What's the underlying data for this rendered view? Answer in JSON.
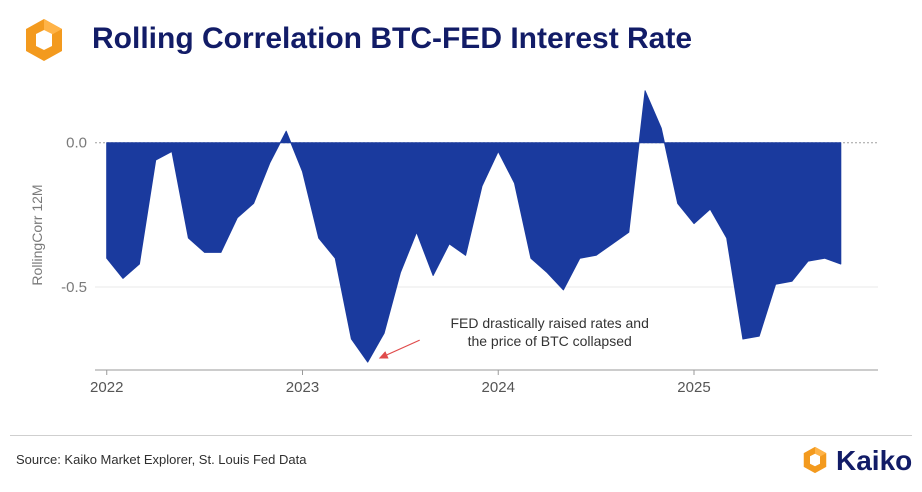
{
  "header": {
    "title": "Rolling Correlation BTC-FED Interest Rate"
  },
  "icons": {
    "logo": "kaiko-logo-icon",
    "brand": "kaiko-brand-icon",
    "arrow": "annotation-arrow-icon"
  },
  "colors": {
    "title": "#121c67",
    "fill": "#1a3a9e",
    "brand_orange": "#f39a1e",
    "brand_orange_light": "#ffb347",
    "arrow": "#e04b4b",
    "zero_line": "#a0a0a0",
    "grid": "#e8e8e8"
  },
  "chart_data": {
    "type": "area",
    "title": "Rolling Correlation BTC-FED Interest Rate",
    "xlabel": "",
    "ylabel": "RollingCorr 12M",
    "x_range": [
      2021.94,
      2025.94
    ],
    "ylim": [
      -0.77,
      0.2
    ],
    "yticks": [
      0.0,
      -0.5
    ],
    "ytick_labels": [
      "0.0",
      "-0.5"
    ],
    "xticks": [
      2022,
      2023,
      2024,
      2025
    ],
    "xtick_labels": [
      "2022",
      "2023",
      "2024",
      "2025"
    ],
    "grid": "horizontal",
    "zero_line": "dashed",
    "x": [
      2022.0,
      2022.083,
      2022.167,
      2022.25,
      2022.333,
      2022.417,
      2022.5,
      2022.583,
      2022.667,
      2022.75,
      2022.833,
      2022.917,
      2023.0,
      2023.083,
      2023.167,
      2023.25,
      2023.333,
      2023.417,
      2023.5,
      2023.583,
      2023.667,
      2023.75,
      2023.833,
      2023.917,
      2024.0,
      2024.083,
      2024.167,
      2024.25,
      2024.333,
      2024.417,
      2024.5,
      2024.583,
      2024.667,
      2024.75,
      2024.833,
      2024.917,
      2025.0,
      2025.083,
      2025.167,
      2025.25,
      2025.333,
      2025.417,
      2025.5,
      2025.583,
      2025.667,
      2025.75
    ],
    "values": [
      -0.4,
      -0.47,
      -0.42,
      -0.06,
      -0.03,
      -0.33,
      -0.38,
      -0.38,
      -0.26,
      -0.21,
      -0.07,
      0.04,
      -0.1,
      -0.33,
      -0.4,
      -0.68,
      -0.76,
      -0.66,
      -0.45,
      -0.31,
      -0.46,
      -0.35,
      -0.39,
      -0.15,
      -0.03,
      -0.14,
      -0.4,
      -0.45,
      -0.51,
      -0.4,
      -0.39,
      -0.35,
      -0.31,
      0.18,
      0.05,
      -0.21,
      -0.28,
      -0.23,
      -0.33,
      -0.68,
      -0.67,
      -0.49,
      -0.48,
      -0.41,
      -0.4,
      -0.42
    ],
    "annotation": {
      "text_line1": "FED drastically raised rates and",
      "text_line2": "the price of BTC collapsed",
      "target_x": 2023.333,
      "target_y": -0.76
    }
  },
  "footer": {
    "source": "Source: Kaiko Market Explorer, St. Louis Fed Data",
    "brand_name": "Kaiko"
  }
}
